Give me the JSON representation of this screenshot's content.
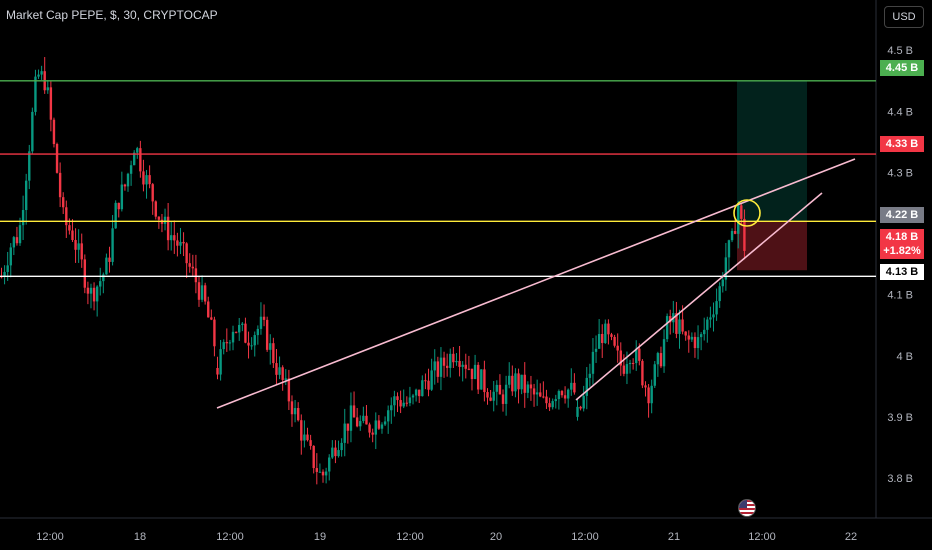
{
  "header": {
    "title": "Market Cap PEPE, $, 30, CRYPTOCAP"
  },
  "currency_button": "USD",
  "colors": {
    "up": "#089981",
    "down": "#f23645",
    "target_line": "#4caf50",
    "resistance_line": "#f23645",
    "entry_line": "#ffeb3b",
    "support_line": "#ffffff",
    "wedge_lines": "#f8bbd0",
    "circle": "#ffeb3b"
  },
  "price_badges": {
    "target": "4.45 B",
    "resistance": "4.33 B",
    "entry": "4.22 B",
    "current": "4.18 B",
    "change": "+1.82%",
    "support": "4.13 B"
  },
  "chart_data": {
    "type": "candlestick",
    "y_axis": {
      "ticks": [
        "4.5 B",
        "4.4 B",
        "4.3 B",
        "4.1 B",
        "4 B",
        "3.9 B",
        "3.8 B"
      ],
      "unit": "B",
      "range": [
        3.76,
        4.52
      ]
    },
    "x_axis": {
      "ticks": [
        "12:00",
        "18",
        "12:00",
        "19",
        "12:00",
        "20",
        "12:00",
        "21",
        "12:00",
        "22"
      ]
    },
    "horizontal_levels": [
      {
        "name": "target",
        "value": 4.45,
        "color": "#4caf50"
      },
      {
        "name": "resistance",
        "value": 4.33,
        "color": "#f23645"
      },
      {
        "name": "entry",
        "value": 4.22,
        "color": "#ffeb3b"
      },
      {
        "name": "support",
        "value": 4.13,
        "color": "#ffffff"
      }
    ],
    "rising_wedge": {
      "upper": [
        [
          "18 12:00",
          3.92
        ],
        [
          "21 22:00",
          4.31
        ]
      ],
      "lower": [
        [
          "20 09:00",
          3.93
        ],
        [
          "21 21:00",
          4.22
        ]
      ]
    },
    "position": {
      "entry": 4.22,
      "target": 4.45,
      "stop": 4.14
    },
    "price_path": [
      [
        4.13,
        4.18,
        4.2,
        4.33,
        4.46,
        4.45,
        4.33,
        4.22,
        4.2,
        4.15,
        4.1,
        4.12,
        4.15,
        4.25,
        4.28,
        4.35,
        4.3,
        4.26,
        4.22,
        4.2,
        4.18,
        4.15,
        4.12,
        4.08,
        4.02
      ],
      [
        3.98,
        4.05,
        4.03,
        4.05,
        3.98,
        3.92,
        3.85,
        3.8,
        3.86,
        3.9,
        3.88,
        3.9,
        3.93,
        3.92,
        3.96,
        3.98,
        4.01,
        3.98,
        3.95,
        3.93,
        3.96,
        3.94,
        3.92,
        3.95,
        3.94
      ],
      [
        3.9,
        3.93,
        3.98,
        4.02,
        4.04,
        4.02,
        4.0,
        3.98,
        4.01,
        4.0,
        3.97,
        3.94,
        3.97,
        4.0,
        4.05,
        4.06,
        4.04,
        4.02,
        4.03,
        4.02,
        4.05,
        4.08,
        4.1,
        4.16,
        4.18,
        4.25,
        4.18
      ]
    ]
  }
}
